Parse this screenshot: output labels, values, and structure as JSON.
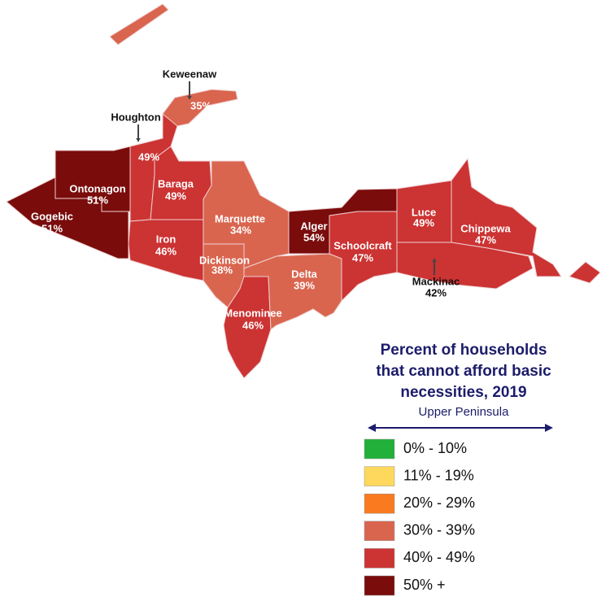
{
  "legend": {
    "title": "Percent of households that cannot afford basic necessities, 2019",
    "subtitle": "Upper Peninsula",
    "entries": [
      {
        "label": "0% - 10%",
        "color": "#22b03a"
      },
      {
        "label": "11% - 19%",
        "color": "#fdd85d"
      },
      {
        "label": "20% - 29%",
        "color": "#f97a1f"
      },
      {
        "label": "30% - 39%",
        "color": "#d9654f"
      },
      {
        "label": "40% - 49%",
        "color": "#cc3333"
      },
      {
        "label": "50% +",
        "color": "#7a0c0c"
      }
    ]
  },
  "counties": [
    {
      "name": "Gogebic",
      "value": "51%",
      "color": "#7a0c0c"
    },
    {
      "name": "Ontonagon",
      "value": "51%",
      "color": "#7a0c0c"
    },
    {
      "name": "Houghton",
      "value": "49%",
      "color": "#cc3333"
    },
    {
      "name": "Keweenaw",
      "value": "35%",
      "color": "#d9654f"
    },
    {
      "name": "Baraga",
      "value": "49%",
      "color": "#cc3333"
    },
    {
      "name": "Marquette",
      "value": "34%",
      "color": "#d9654f"
    },
    {
      "name": "Iron",
      "value": "46%",
      "color": "#cc3333"
    },
    {
      "name": "Dickinson",
      "value": "38%",
      "color": "#d9654f"
    },
    {
      "name": "Menominee",
      "value": "46%",
      "color": "#cc3333"
    },
    {
      "name": "Alger",
      "value": "54%",
      "color": "#7a0c0c"
    },
    {
      "name": "Delta",
      "value": "39%",
      "color": "#d9654f"
    },
    {
      "name": "Schoolcraft",
      "value": "47%",
      "color": "#cc3333"
    },
    {
      "name": "Luce",
      "value": "49%",
      "color": "#cc3333"
    },
    {
      "name": "Mackinac",
      "value": "42%",
      "color": "#cc3333"
    },
    {
      "name": "Chippewa",
      "value": "47%",
      "color": "#cc3333"
    }
  ]
}
